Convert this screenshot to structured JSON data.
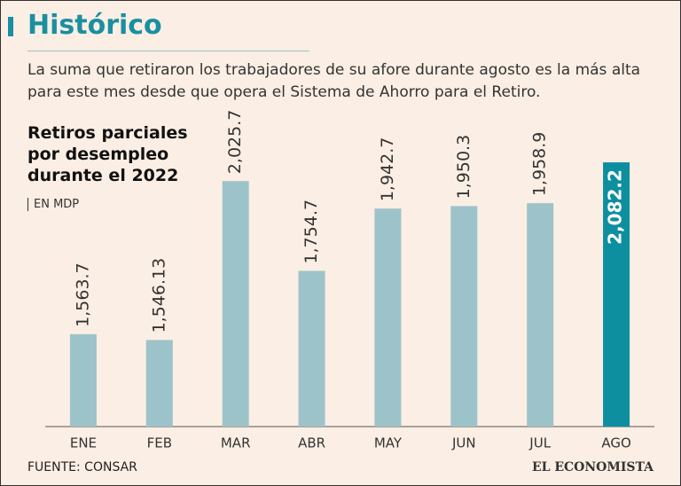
{
  "header": {
    "title": "Histórico",
    "description": "La suma que retiraron los trabajadores de su afore durante agosto es la más alta para este mes desde que opera el Sistema de Ahorro para el Retiro."
  },
  "chart_data": {
    "type": "bar",
    "title": "Retiros parciales por desempleo durante el 2022",
    "unit": "EN MDP",
    "categories": [
      "ENE",
      "FEB",
      "MAR",
      "ABR",
      "MAY",
      "JUN",
      "JUL",
      "AGO"
    ],
    "values": [
      1563.7,
      1546.13,
      2025.7,
      1754.7,
      1942.7,
      1950.3,
      1958.9,
      2082.2
    ],
    "value_labels": [
      "1,563.7",
      "1,546.13",
      "2,025.7",
      "1,754.7",
      "1,942.7",
      "1,950.3",
      "1,958.9",
      "2,082.2"
    ],
    "colors": [
      "#9cc3c9",
      "#9cc3c9",
      "#9cc3c9",
      "#9cc3c9",
      "#9cc3c9",
      "#9cc3c9",
      "#9cc3c9",
      "#0e8fa0"
    ],
    "highlight_color": "#0e8fa0",
    "ylim": [
      1285,
      2085
    ],
    "source": "FUENTE: CONSAR"
  },
  "brand": "EL ECONOMISTA"
}
